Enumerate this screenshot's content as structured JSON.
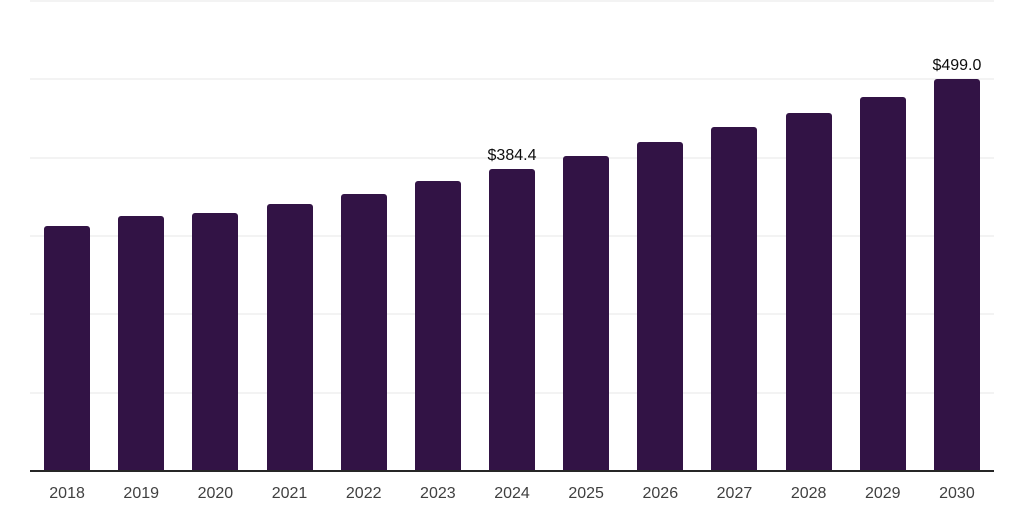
{
  "chart_data": {
    "type": "bar",
    "title": "",
    "categories": [
      "2018",
      "2019",
      "2020",
      "2021",
      "2022",
      "2023",
      "2024",
      "2025",
      "2026",
      "2027",
      "2028",
      "2029",
      "2030"
    ],
    "values": [
      311.0,
      324.9,
      328.3,
      339.7,
      352.8,
      369.0,
      384.4,
      401.3,
      418.6,
      437.7,
      456.0,
      476.3,
      499.0
    ],
    "data_labels": [
      "",
      "",
      "",
      "",
      "",
      "",
      "$384.4",
      "",
      "",
      "",
      "",
      "",
      "$499.0"
    ],
    "xlabel": "",
    "ylabel": "",
    "ylim": [
      0,
      600
    ],
    "gridline_step": 100,
    "grid": true,
    "legend": false,
    "y_tick_labels_visible": false,
    "colors": {
      "bar": "#321345",
      "gridline": "#f3f3f3",
      "axis": "#262626",
      "tick_label": "#404040",
      "data_label": "#0d0d0d",
      "background": "#ffffff"
    }
  }
}
